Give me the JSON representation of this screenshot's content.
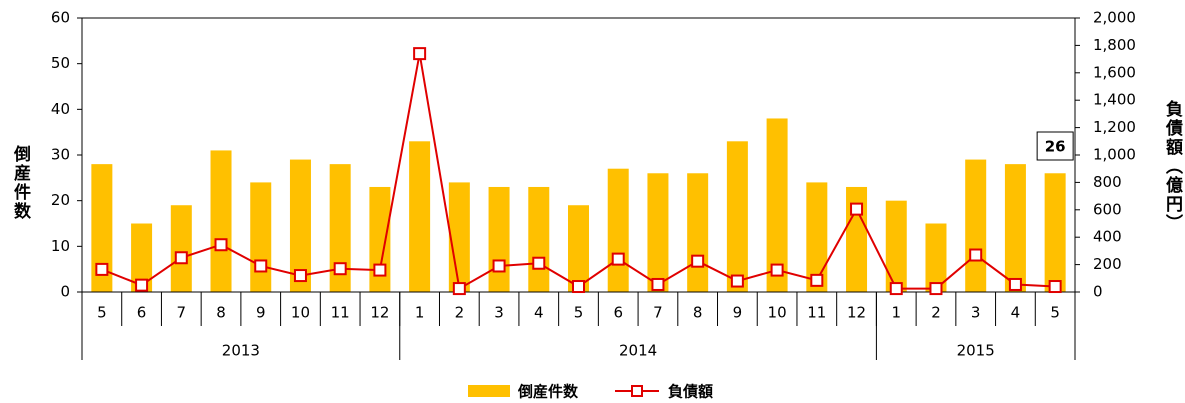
{
  "chart_data": {
    "type": "bar-line",
    "categories": [
      "5",
      "6",
      "7",
      "8",
      "9",
      "10",
      "11",
      "12",
      "1",
      "2",
      "3",
      "4",
      "5",
      "6",
      "7",
      "8",
      "9",
      "10",
      "11",
      "12",
      "1",
      "2",
      "3",
      "4",
      "5"
    ],
    "x_groups": [
      "2013",
      "2014",
      "2015"
    ],
    "series": [
      {
        "name": "倒産件数",
        "color": "#ffc000",
        "type": "bar",
        "values": [
          28,
          15,
          19,
          31,
          24,
          29,
          28,
          23,
          33,
          24,
          23,
          23,
          19,
          27,
          26,
          26,
          33,
          38,
          24,
          23,
          20,
          15,
          29,
          28,
          26
        ]
      },
      {
        "name": "負債額",
        "color": "#e00000",
        "type": "line",
        "axis": "y2",
        "values": [
          165,
          50,
          250,
          345,
          190,
          120,
          170,
          160,
          1740,
          25,
          190,
          210,
          40,
          240,
          55,
          225,
          80,
          160,
          85,
          605,
          25,
          25,
          270,
          55,
          40
        ]
      }
    ],
    "ylabel": "倒産件数",
    "y2label": "負債額（億円）",
    "ylim": [
      0,
      60
    ],
    "yticks": [
      0,
      10,
      20,
      30,
      40,
      50,
      60
    ],
    "y2lim": [
      0,
      2000
    ],
    "y2ticks": [
      0,
      200,
      400,
      600,
      800,
      {
        "value": 1000,
        "label": "1,000"
      },
      {
        "value": 1200,
        "label": "1,200"
      },
      {
        "value": 1400,
        "label": "1,400"
      },
      {
        "value": 1600,
        "label": "1,600"
      },
      {
        "value": 1800,
        "label": "1,800"
      },
      {
        "value": 2000,
        "label": "2,000"
      }
    ]
  }
}
